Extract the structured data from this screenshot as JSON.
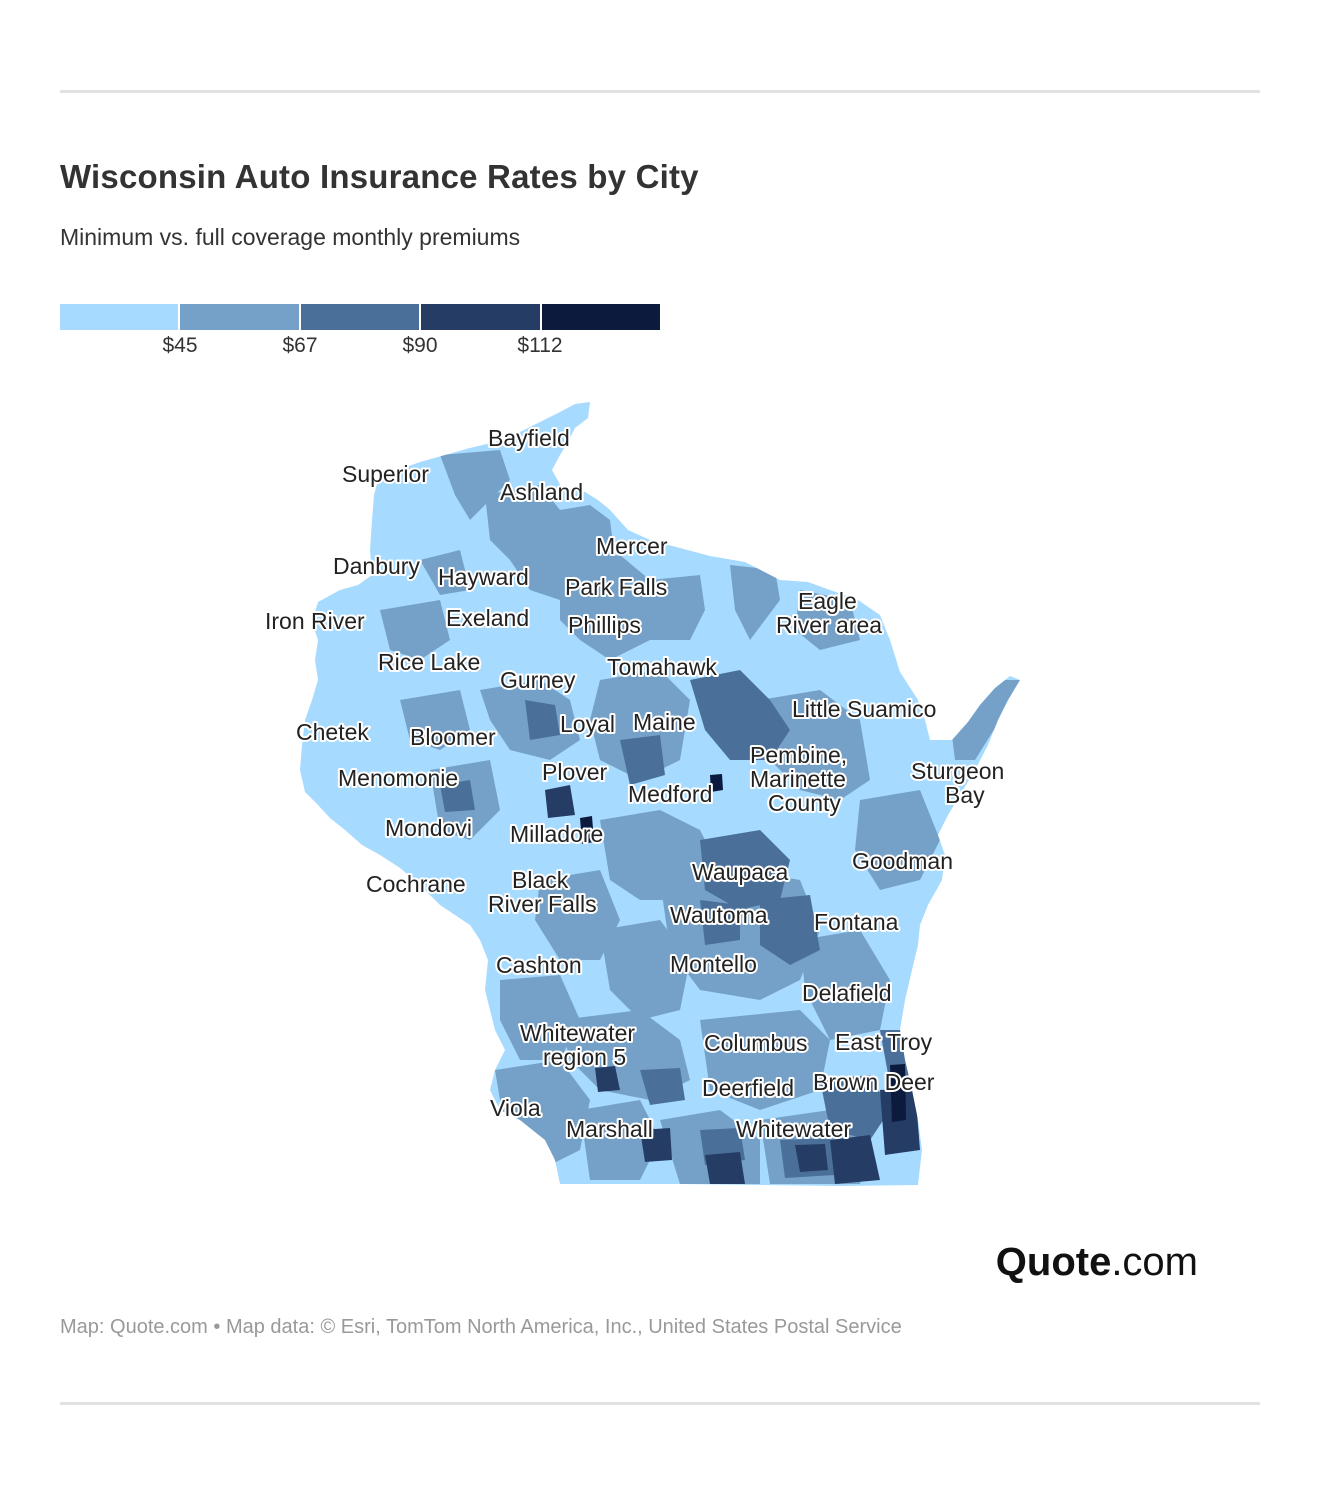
{
  "header": {
    "title": "Wisconsin Auto Insurance Rates by City",
    "subtitle": "Minimum vs. full coverage monthly premiums"
  },
  "legend": {
    "colors": [
      "#a6dbff",
      "#75a1c9",
      "#4a709a",
      "#253c65",
      "#0b1a3d"
    ],
    "labels": [
      "$45",
      "$67",
      "$90",
      "$112"
    ]
  },
  "map": {
    "region": "Wisconsin",
    "base_color": "#a6dbff",
    "cities": [
      "Bayfield",
      "Superior",
      "Ashland",
      "Mercer",
      "Danbury",
      "Hayward",
      "Park Falls",
      "Eagle River area",
      "Iron River",
      "Exeland",
      "Phillips",
      "Rice Lake",
      "Tomahawk",
      "Gurney",
      "Little Suamico",
      "Chetek",
      "Loyal",
      "Maine",
      "Bloomer",
      "Pembine, Marinette County",
      "Sturgeon Bay",
      "Menomonie",
      "Plover",
      "Medford",
      "Mondovi",
      "Milladore",
      "Goodman",
      "Cochrane",
      "Black River Falls",
      "Waupaca",
      "Wautoma",
      "Fontana",
      "Cashton",
      "Montello",
      "Delafield",
      "Whitewater region 5",
      "Columbus",
      "East Troy",
      "Deerfield",
      "Brown Deer",
      "Viola",
      "Marshall",
      "Whitewater"
    ]
  },
  "footer": {
    "brand_bold": "Quote",
    "brand_rest": ".com",
    "credit": "Map: Quote.com • Map data: © Esri, TomTom North America, Inc., United States Postal Service"
  }
}
